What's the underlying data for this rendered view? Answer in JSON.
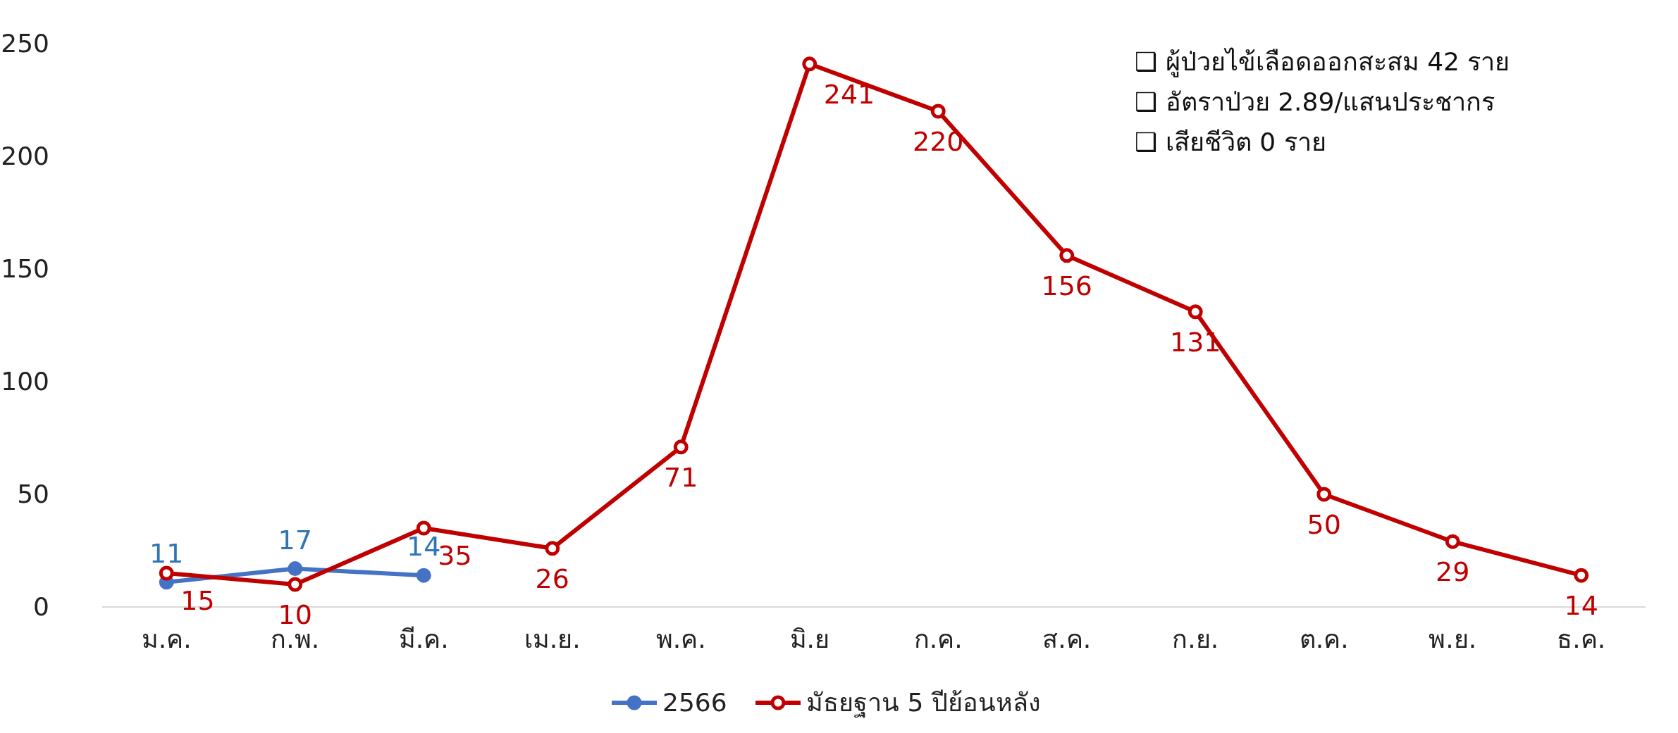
{
  "chart_data": {
    "type": "line",
    "categories": [
      "ม.ค.",
      "ก.พ.",
      "มี.ค.",
      "เม.ย.",
      "พ.ค.",
      "มิ.ย",
      "ก.ค.",
      "ส.ค.",
      "ก.ย.",
      "ต.ค.",
      "พ.ย.",
      "ธ.ค."
    ],
    "series": [
      {
        "name": "2566",
        "color": "#4472c4",
        "values": [
          11,
          17,
          14,
          null,
          null,
          null,
          null,
          null,
          null,
          null,
          null,
          null
        ]
      },
      {
        "name": "มัธยฐาน 5 ปีย้อนหลัง",
        "color": "#c00000",
        "values": [
          15,
          10,
          35,
          26,
          71,
          241,
          220,
          156,
          131,
          50,
          29,
          14
        ]
      }
    ],
    "ylim": [
      0,
      250
    ],
    "yticks": [
      0,
      50,
      100,
      150,
      200,
      250
    ],
    "data_labels": true,
    "legend": "bottom",
    "marker": "circle",
    "line_style": "solid",
    "annotations": [
      "❑ ผู้ป่วยไข้เลือดออกสะสม 42 ราย",
      "❑ อัตราป่วย 2.89/แสนประชากร",
      "❑ เสียชีวิต 0 ราย"
    ]
  }
}
